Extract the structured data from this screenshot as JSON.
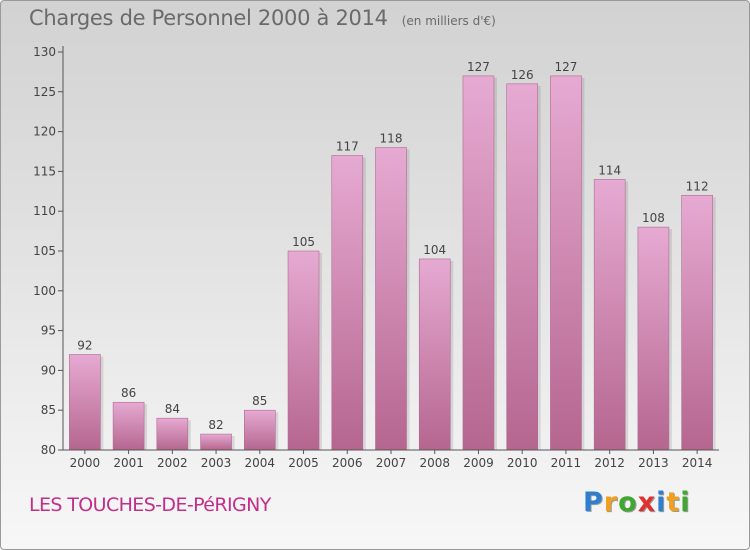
{
  "title": "Charges de Personnel 2000 à 2014",
  "subtitle": "(en milliers d'€)",
  "commune": "LES TOUCHES-DE-PéRIGNY",
  "logo": {
    "letters": [
      "P",
      "r",
      "o",
      "x",
      "i",
      "t",
      "i"
    ],
    "colors": [
      "#2f7fd0",
      "#f0a020",
      "#40a830",
      "#e03030",
      "#2f7fd0",
      "#f0a020",
      "#40a830"
    ]
  },
  "colors": {
    "bar_top": "#e6aad2",
    "bar_bottom": "#b5668f",
    "axis": "#555555",
    "text": "#444444"
  },
  "chart_data": {
    "type": "bar",
    "categories": [
      "2000",
      "2001",
      "2002",
      "2003",
      "2004",
      "2005",
      "2006",
      "2007",
      "2008",
      "2009",
      "2010",
      "2011",
      "2012",
      "2013",
      "2014"
    ],
    "values": [
      92,
      86,
      84,
      82,
      85,
      105,
      117,
      118,
      104,
      127,
      126,
      127,
      114,
      108,
      112
    ],
    "ylim": [
      80,
      130
    ],
    "yticks": [
      80,
      85,
      90,
      95,
      100,
      105,
      110,
      115,
      120,
      125,
      130
    ],
    "grid": false,
    "data_labels": true
  }
}
